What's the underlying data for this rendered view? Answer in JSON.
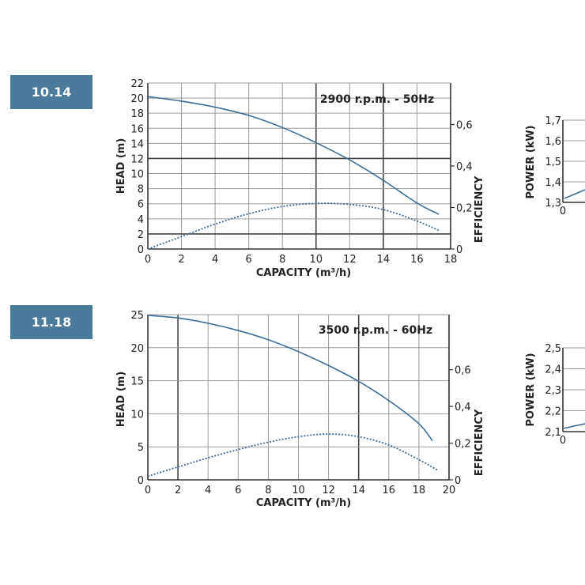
{
  "badges": [
    "10.14",
    "11.18"
  ],
  "chart_data": [
    {
      "type": "line",
      "badge": "10.14",
      "annotation": "2900 r.p.m. - 50Hz",
      "xlabel": "CAPACITY (m³/h)",
      "ylabel": "HEAD (m)",
      "y2label": "EFFICIENCY",
      "xlim": [
        0,
        18
      ],
      "ylim": [
        0,
        22
      ],
      "y2lim": [
        0,
        0.8
      ],
      "xticks": [
        0,
        2,
        4,
        6,
        8,
        10,
        12,
        14,
        16,
        18
      ],
      "xtick_labels": [
        "0",
        "2",
        "4",
        "6",
        "8",
        "10",
        "12",
        "14",
        "16",
        "18"
      ],
      "yticks": [
        0,
        2,
        4,
        6,
        8,
        10,
        12,
        14,
        16,
        18,
        20,
        22
      ],
      "ytick_labels": [
        "0",
        "2",
        "4",
        "6",
        "8",
        "10",
        "12",
        "14",
        "16",
        "18",
        "20",
        "22"
      ],
      "y2ticks": [
        0,
        0.2,
        0.4,
        0.6
      ],
      "y2tick_labels": [
        "0",
        "0,2",
        "0,4",
        "0,6"
      ],
      "grid": true,
      "series": [
        {
          "axis": "left",
          "style": "solid",
          "x": [
            0,
            2,
            4,
            6,
            8,
            10,
            12,
            14,
            16,
            17.3
          ],
          "y": [
            20.2,
            19.6,
            18.8,
            17.7,
            16.1,
            14.1,
            11.8,
            9.1,
            6.1,
            4.6
          ]
        },
        {
          "axis": "right",
          "style": "dotted",
          "x": [
            0,
            2,
            4,
            6,
            8,
            10,
            12,
            14,
            16,
            17.3
          ],
          "y": [
            0.0,
            0.06,
            0.12,
            0.17,
            0.205,
            0.22,
            0.215,
            0.19,
            0.135,
            0.09
          ]
        }
      ]
    },
    {
      "type": "line",
      "badge": "11.18",
      "annotation": "3500 r.p.m.  - 60Hz",
      "xlabel": "CAPACITY (m³/h)",
      "ylabel": "HEAD (m)",
      "y2label": "EFFICIENCY",
      "xlim": [
        0,
        20
      ],
      "ylim": [
        0,
        25
      ],
      "y2lim": [
        0,
        0.9
      ],
      "xticks": [
        0,
        2,
        4,
        6,
        8,
        10,
        12,
        14,
        16,
        18,
        20
      ],
      "xtick_labels": [
        "0",
        "2",
        "4",
        "6",
        "8",
        "10",
        "12",
        "14",
        "16",
        "18",
        "20"
      ],
      "yticks": [
        0,
        5,
        10,
        15,
        20,
        25
      ],
      "ytick_labels": [
        "0",
        "5",
        "10",
        "15",
        "20",
        "25"
      ],
      "y2ticks": [
        0,
        0.2,
        0.4,
        0.6
      ],
      "y2tick_labels": [
        "0",
        "0,2",
        "0,4",
        "0,6"
      ],
      "grid": true,
      "series": [
        {
          "axis": "left",
          "style": "solid",
          "x": [
            0,
            2,
            4,
            6,
            8,
            10,
            12,
            14,
            16,
            18,
            18.9
          ],
          "y": [
            24.9,
            24.5,
            23.7,
            22.6,
            21.2,
            19.4,
            17.3,
            14.9,
            12.0,
            8.5,
            5.9
          ]
        },
        {
          "axis": "right",
          "style": "dotted",
          "x": [
            0,
            2,
            4,
            6,
            8,
            10,
            12,
            14,
            16,
            18,
            19.3
          ],
          "y": [
            0.02,
            0.07,
            0.12,
            0.165,
            0.205,
            0.235,
            0.25,
            0.235,
            0.19,
            0.11,
            0.05
          ]
        }
      ]
    }
  ],
  "power_charts": [
    {
      "ylabel": "POWER (kW)",
      "ytick_labels": [
        "1,7",
        "1,6",
        "1,5",
        "1,4",
        "1,3"
      ],
      "x0_label": "0"
    },
    {
      "ylabel": "POWER (kW)",
      "ytick_labels": [
        "2,5",
        "2,4",
        "2,3",
        "2,2",
        "2,1"
      ],
      "x0_label": "0"
    }
  ],
  "colors": {
    "badge": "#4a7a9c",
    "curve": "#3d6d96",
    "grid_light": "#9a9a9a",
    "grid_dark": "#444444",
    "text": "#222222"
  }
}
